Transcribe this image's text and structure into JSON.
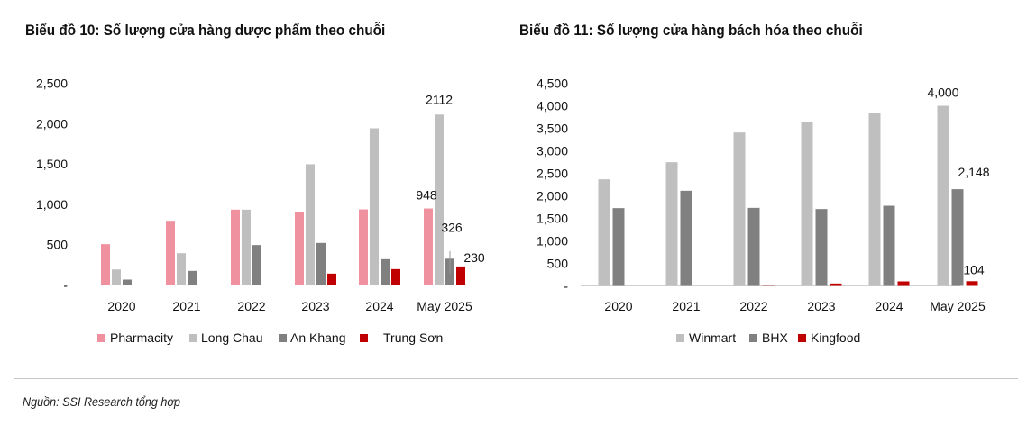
{
  "chart_data": [
    {
      "type": "bar",
      "title": "Biểu đồ 10: Số lượng cửa hàng dược phẩm theo chuỗi",
      "categories": [
        "2020",
        "2021",
        "2022",
        "2023",
        "2024",
        "May 2025"
      ],
      "ylim": [
        0,
        2500
      ],
      "yticks": [
        0,
        500,
        1000,
        1500,
        2000,
        2500
      ],
      "ytick_labels": [
        "-",
        "500",
        "1,000",
        "1,500",
        "2,000",
        "2,500"
      ],
      "grid": false,
      "legend": "bottom",
      "series": [
        {
          "name": "Pharmacity",
          "color": "#F0919F",
          "values": [
            506,
            796,
            934,
            900,
            937,
            948
          ]
        },
        {
          "name": "Long Chau",
          "color": "#BFBFBF",
          "values": [
            193,
            394,
            934,
            1496,
            1942,
            2112
          ]
        },
        {
          "name": "An Khang",
          "color": "#808080",
          "values": [
            67,
            175,
            495,
            521,
            320,
            326
          ]
        },
        {
          "name": "Trung Sơn",
          "color": "#C00000",
          "values": [
            0,
            0,
            0,
            141,
            197,
            230
          ]
        }
      ],
      "data_labels": [
        {
          "series": "Pharmacity",
          "category": "May 2025",
          "text": "948"
        },
        {
          "series": "Long Chau",
          "category": "May 2025",
          "text": "2112"
        },
        {
          "series": "An Khang",
          "category": "May 2025",
          "text": "326"
        },
        {
          "series": "Trung Sơn",
          "category": "May 2025",
          "text": "230"
        }
      ]
    },
    {
      "type": "bar",
      "title": "Biểu đồ 11: Số lượng cửa hàng bách hóa theo chuỗi",
      "categories": [
        "2020",
        "2021",
        "2022",
        "2023",
        "2024",
        "May 2025"
      ],
      "ylim": [
        0,
        4500
      ],
      "yticks": [
        0,
        500,
        1000,
        1500,
        2000,
        2500,
        3000,
        3500,
        4000,
        4500
      ],
      "ytick_labels": [
        "-",
        "500",
        "1,000",
        "1,500",
        "2,000",
        "2,500",
        "3,000",
        "3,500",
        "4,000",
        "4,500"
      ],
      "grid": false,
      "legend": "bottom",
      "series": [
        {
          "name": "Winmart",
          "color": "#BFBFBF",
          "values": [
            2367,
            2747,
            3407,
            3640,
            3833,
            4000
          ]
        },
        {
          "name": "BHX",
          "color": "#808080",
          "values": [
            1727,
            2113,
            1733,
            1707,
            1780,
            2148
          ]
        },
        {
          "name": "Kingfood",
          "color": "#C00000",
          "values": [
            0,
            0,
            5,
            53,
            100,
            104
          ]
        }
      ],
      "data_labels": [
        {
          "series": "Winmart",
          "category": "May 2025",
          "text": "4,000"
        },
        {
          "series": "BHX",
          "category": "May 2025",
          "text": "2,148"
        },
        {
          "series": "Kingfood",
          "category": "May 2025",
          "text": "104"
        }
      ]
    }
  ],
  "source": "Nguồn: SSI Research tổng hợp"
}
